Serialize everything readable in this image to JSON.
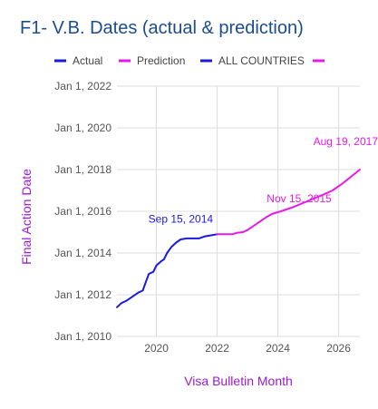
{
  "page": {
    "title": "F1- V.B. Dates (actual & prediction)"
  },
  "colors": {
    "title": "#1a4d8c",
    "actual": "#1a1adb",
    "prediction": "#e619e6",
    "axis_title": "#9b1ad1",
    "grid": "#dddddd",
    "tick": "#555555"
  },
  "chart_data": {
    "type": "line",
    "title": "F1- V.B. Dates (actual & prediction)",
    "xlabel": "Visa Bulletin Month",
    "ylabel": "Final Action Date",
    "xlim": [
      2018.7,
      2026.7
    ],
    "ylim": [
      2010.0,
      2022.0
    ],
    "x_ticks": [
      2020,
      2022,
      2024,
      2026
    ],
    "x_tick_labels": [
      "2020",
      "2022",
      "2024",
      "2026"
    ],
    "y_ticks": [
      2010,
      2012,
      2014,
      2016,
      2018,
      2020,
      2022
    ],
    "y_tick_labels": [
      "Jan 1, 2010",
      "Jan 1, 2012",
      "Jan 1, 2014",
      "Jan 1, 2016",
      "Jan 1, 2018",
      "Jan 1, 2020",
      "Jan 1, 2022"
    ],
    "grid": true,
    "legend_position": "top",
    "legend": [
      {
        "label": "Actual",
        "color": "#1a1adb"
      },
      {
        "label": "Prediction",
        "color": "#e619e6"
      },
      {
        "label": "ALL COUNTRIES",
        "color": "#1a1adb"
      },
      {
        "label": "",
        "color": "#e619e6"
      }
    ],
    "series": [
      {
        "name": "Actual",
        "color": "#1a1adb",
        "points": [
          [
            2018.7,
            2011.4
          ],
          [
            2018.85,
            2011.6
          ],
          [
            2019.0,
            2011.7
          ],
          [
            2019.2,
            2011.9
          ],
          [
            2019.4,
            2012.1
          ],
          [
            2019.55,
            2012.2
          ],
          [
            2019.65,
            2012.6
          ],
          [
            2019.75,
            2013.0
          ],
          [
            2019.9,
            2013.1
          ],
          [
            2020.0,
            2013.4
          ],
          [
            2020.15,
            2013.6
          ],
          [
            2020.25,
            2013.7
          ],
          [
            2020.35,
            2014.0
          ],
          [
            2020.5,
            2014.3
          ],
          [
            2020.65,
            2014.5
          ],
          [
            2020.8,
            2014.65
          ],
          [
            2021.0,
            2014.7
          ],
          [
            2021.2,
            2014.7
          ],
          [
            2021.4,
            2014.7
          ],
          [
            2021.6,
            2014.8
          ],
          [
            2021.8,
            2014.85
          ],
          [
            2022.0,
            2014.9
          ]
        ]
      },
      {
        "name": "Prediction",
        "color": "#e619e6",
        "points": [
          [
            2022.0,
            2014.9
          ],
          [
            2022.5,
            2014.9
          ],
          [
            2022.65,
            2014.97
          ],
          [
            2022.85,
            2015.0
          ],
          [
            2023.0,
            2015.1
          ],
          [
            2023.3,
            2015.4
          ],
          [
            2023.6,
            2015.7
          ],
          [
            2023.8,
            2015.87
          ],
          [
            2024.1,
            2016.0
          ],
          [
            2024.5,
            2016.2
          ],
          [
            2025.0,
            2016.5
          ],
          [
            2025.5,
            2016.8
          ],
          [
            2025.8,
            2017.0
          ],
          [
            2026.1,
            2017.3
          ],
          [
            2026.4,
            2017.65
          ],
          [
            2026.7,
            2018.0
          ]
        ]
      }
    ],
    "annotations": [
      {
        "text": "Sep 15, 2014",
        "x": 2020.8,
        "y": 2014.9,
        "color": "#1a1adb"
      },
      {
        "text": "Nov 15, 2015",
        "x": 2024.7,
        "y": 2015.87,
        "color": "#e619e6"
      },
      {
        "text": "Aug 19, 2017",
        "x": 2026.7,
        "y": 2018.6,
        "color": "#e619e6"
      }
    ]
  }
}
